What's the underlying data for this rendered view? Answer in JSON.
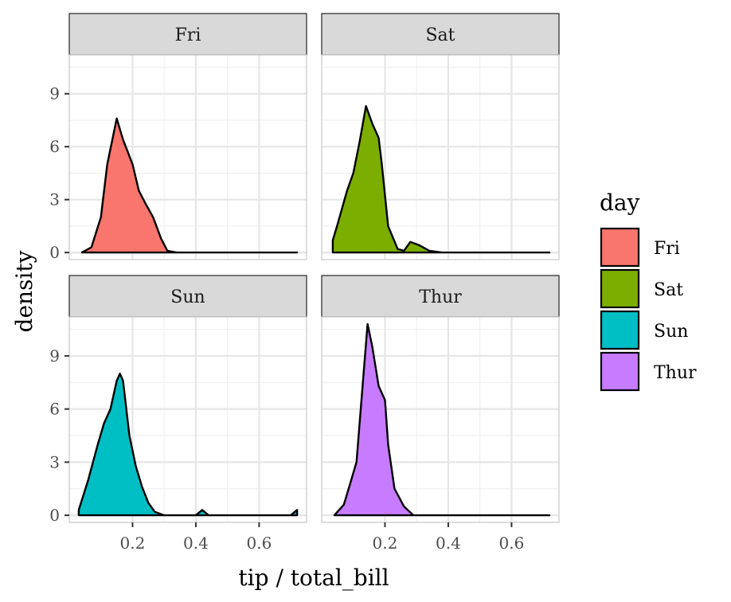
{
  "chart_data": {
    "type": "area",
    "subtype": "faceted density",
    "xlabel": "tip / total_bill",
    "ylabel": "density",
    "xlim": [
      0.0,
      0.75
    ],
    "ylim": [
      -0.4,
      11.2
    ],
    "x_ticks": [
      0.2,
      0.4,
      0.6
    ],
    "x_tick_labels": [
      "0.2",
      "0.4",
      "0.6"
    ],
    "y_ticks": [
      0,
      3,
      6,
      9
    ],
    "y_tick_labels": [
      "0",
      "3",
      "6",
      "9"
    ],
    "grid": true,
    "legend": {
      "title": "day",
      "position": "right"
    },
    "facets": [
      {
        "name": "Fri",
        "color": "#F8766D",
        "points": [
          [
            0.04,
            0
          ],
          [
            0.07,
            0.3
          ],
          [
            0.1,
            2.0
          ],
          [
            0.12,
            5.0
          ],
          [
            0.15,
            7.6
          ],
          [
            0.17,
            6.4
          ],
          [
            0.2,
            5.0
          ],
          [
            0.22,
            3.5
          ],
          [
            0.24,
            2.8
          ],
          [
            0.265,
            2.0
          ],
          [
            0.29,
            0.8
          ],
          [
            0.31,
            0.1
          ],
          [
            0.34,
            0
          ],
          [
            0.72,
            0
          ]
        ]
      },
      {
        "name": "Sat",
        "color": "#7CAE00",
        "points": [
          [
            0.035,
            0.7
          ],
          [
            0.05,
            1.6
          ],
          [
            0.08,
            3.5
          ],
          [
            0.1,
            4.5
          ],
          [
            0.12,
            6.3
          ],
          [
            0.14,
            8.3
          ],
          [
            0.16,
            7.3
          ],
          [
            0.18,
            6.5
          ],
          [
            0.19,
            5.0
          ],
          [
            0.21,
            1.5
          ],
          [
            0.24,
            0.2
          ],
          [
            0.26,
            0.1
          ],
          [
            0.28,
            0.6
          ],
          [
            0.31,
            0.4
          ],
          [
            0.34,
            0.1
          ],
          [
            0.38,
            0
          ],
          [
            0.72,
            0
          ]
        ]
      },
      {
        "name": "Sun",
        "color": "#00BFC4",
        "points": [
          [
            0.03,
            0.3
          ],
          [
            0.06,
            2.0
          ],
          [
            0.09,
            4.0
          ],
          [
            0.11,
            5.2
          ],
          [
            0.13,
            6.0
          ],
          [
            0.15,
            7.6
          ],
          [
            0.16,
            8.0
          ],
          [
            0.17,
            7.6
          ],
          [
            0.19,
            4.5
          ],
          [
            0.21,
            2.8
          ],
          [
            0.23,
            1.6
          ],
          [
            0.25,
            0.7
          ],
          [
            0.27,
            0.2
          ],
          [
            0.3,
            0
          ],
          [
            0.4,
            0
          ],
          [
            0.42,
            0.3
          ],
          [
            0.44,
            0
          ],
          [
            0.7,
            0
          ],
          [
            0.72,
            0.3
          ]
        ]
      },
      {
        "name": "Thur",
        "color": "#C77CFF",
        "points": [
          [
            0.04,
            0
          ],
          [
            0.07,
            0.6
          ],
          [
            0.09,
            1.8
          ],
          [
            0.11,
            3.0
          ],
          [
            0.13,
            7.5
          ],
          [
            0.145,
            10.8
          ],
          [
            0.16,
            9.5
          ],
          [
            0.18,
            7.3
          ],
          [
            0.2,
            6.5
          ],
          [
            0.21,
            4.0
          ],
          [
            0.23,
            1.5
          ],
          [
            0.26,
            0.5
          ],
          [
            0.29,
            0
          ],
          [
            0.72,
            0
          ]
        ]
      }
    ]
  }
}
